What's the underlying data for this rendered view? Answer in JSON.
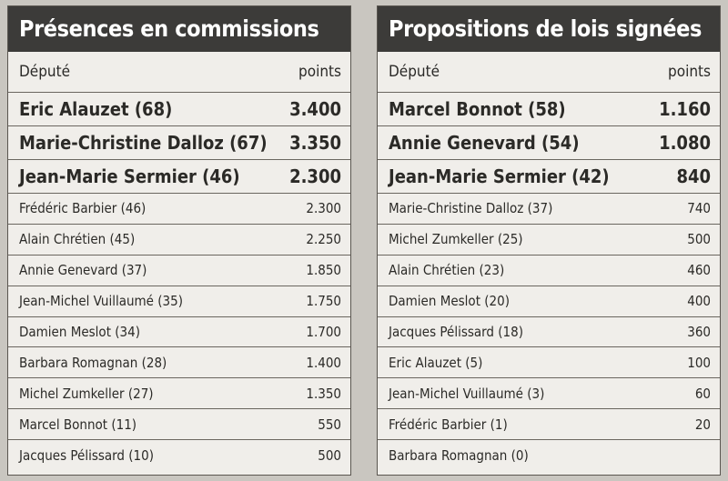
{
  "tables": [
    {
      "title": "Présences en commissions",
      "col_deputy": "Député",
      "col_points": "points",
      "rows": [
        {
          "name": "Eric Alauzet (68)",
          "points": "3.400",
          "big": true
        },
        {
          "name": "Marie-Christine Dalloz (67)",
          "points": "3.350",
          "big": true
        },
        {
          "name": "Jean-Marie Sermier (46)",
          "points": "2.300",
          "big": true
        },
        {
          "name": "Frédéric Barbier (46)",
          "points": "2.300"
        },
        {
          "name": "Alain Chrétien (45)",
          "points": "2.250"
        },
        {
          "name": "Annie Genevard (37)",
          "points": "1.850"
        },
        {
          "name": "Jean-Michel Vuillaumé (35)",
          "points": "1.750"
        },
        {
          "name": "Damien Meslot (34)",
          "points": "1.700"
        },
        {
          "name": "Barbara Romagnan (28)",
          "points": "1.400"
        },
        {
          "name": "Michel Zumkeller (27)",
          "points": "1.350"
        },
        {
          "name": "Marcel Bonnot (11)",
          "points": "550"
        },
        {
          "name": "Jacques Pélissard (10)",
          "points": "500"
        }
      ]
    },
    {
      "title": "Propositions de lois signées",
      "col_deputy": "Député",
      "col_points": "points",
      "rows": [
        {
          "name": "Marcel Bonnot (58)",
          "points": "1.160",
          "big": true
        },
        {
          "name": "Annie Genevard (54)",
          "points": "1.080",
          "big": true
        },
        {
          "name": "Jean-Marie Sermier (42)",
          "points": "840",
          "big": true
        },
        {
          "name": "Marie-Christine Dalloz (37)",
          "points": "740"
        },
        {
          "name": "Michel Zumkeller (25)",
          "points": "500"
        },
        {
          "name": "Alain Chrétien (23)",
          "points": "460"
        },
        {
          "name": "Damien Meslot (20)",
          "points": "400"
        },
        {
          "name": "Jacques Pélissard (18)",
          "points": "360"
        },
        {
          "name": "Eric Alauzet (5)",
          "points": "100"
        },
        {
          "name": "Jean-Michel Vuillaumé (3)",
          "points": "60"
        },
        {
          "name": "Frédéric Barbier (1)",
          "points": "20"
        },
        {
          "name": "Barbara Romagnan (0)",
          "points": ""
        }
      ]
    }
  ]
}
